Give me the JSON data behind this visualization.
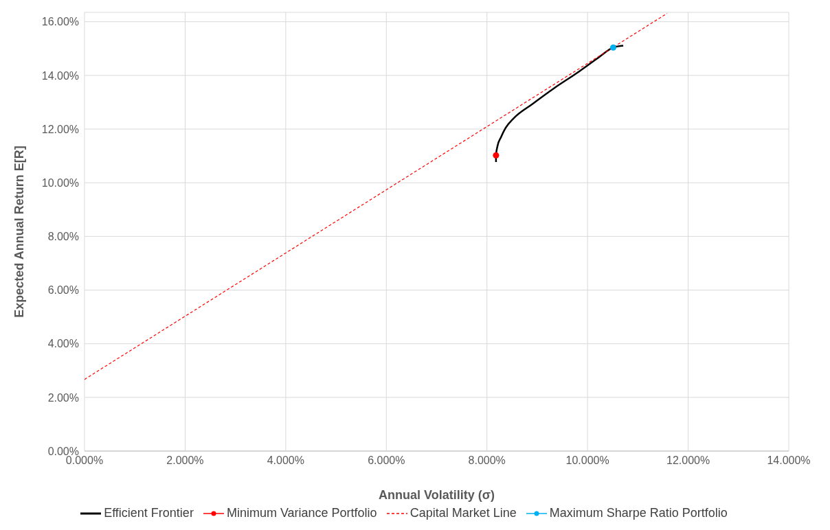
{
  "chart_data": {
    "type": "line",
    "xlabel": "Annual Volatility (σ)",
    "ylabel": "Expected Annual Return E[R]",
    "xlim": [
      0,
      14
    ],
    "ylim": [
      0,
      16.35
    ],
    "xticks": [
      {
        "value": 0,
        "label": "0.000%"
      },
      {
        "value": 2,
        "label": "2.000%"
      },
      {
        "value": 4,
        "label": "4.000%"
      },
      {
        "value": 6,
        "label": "6.000%"
      },
      {
        "value": 8,
        "label": "8.000%"
      },
      {
        "value": 10,
        "label": "10.000%"
      },
      {
        "value": 12,
        "label": "12.000%"
      },
      {
        "value": 14,
        "label": "14.000%"
      }
    ],
    "yticks": [
      {
        "value": 0,
        "label": "0.00%"
      },
      {
        "value": 2,
        "label": "2.00%"
      },
      {
        "value": 4,
        "label": "4.00%"
      },
      {
        "value": 6,
        "label": "6.00%"
      },
      {
        "value": 8,
        "label": "8.00%"
      },
      {
        "value": 10,
        "label": "10.00%"
      },
      {
        "value": 12,
        "label": "12.00%"
      },
      {
        "value": 14,
        "label": "14.00%"
      },
      {
        "value": 16,
        "label": "16.00%"
      }
    ],
    "grid": true,
    "legend": "bottom",
    "series": [
      {
        "name": "Efficient Frontier",
        "color": "#000000",
        "line_style": "solid",
        "marker": "none",
        "x": [
          8.18,
          8.18,
          8.21,
          8.28,
          8.37,
          8.54,
          8.9,
          9.34,
          9.78,
          10.22,
          10.51,
          10.71
        ],
        "values": [
          10.77,
          11.03,
          11.37,
          11.7,
          12.04,
          12.42,
          12.93,
          13.53,
          14.08,
          14.67,
          15.04,
          15.11
        ]
      },
      {
        "name": "Minimum Variance Portfolio",
        "type": "scatter",
        "color": "#ff0000",
        "marker": "circle",
        "x": [
          8.18
        ],
        "values": [
          11.02
        ]
      },
      {
        "name": "Capital Market Line",
        "color": "#ff0000",
        "line_style": "dashed",
        "marker": "none",
        "x": [
          0,
          11.58
        ],
        "values": [
          2.67,
          16.31
        ]
      },
      {
        "name": "Maximum Sharpe Ratio Portfolio",
        "type": "scatter",
        "color": "#00b0f0",
        "marker": "circle",
        "x": [
          10.51
        ],
        "values": [
          15.04
        ]
      }
    ]
  }
}
